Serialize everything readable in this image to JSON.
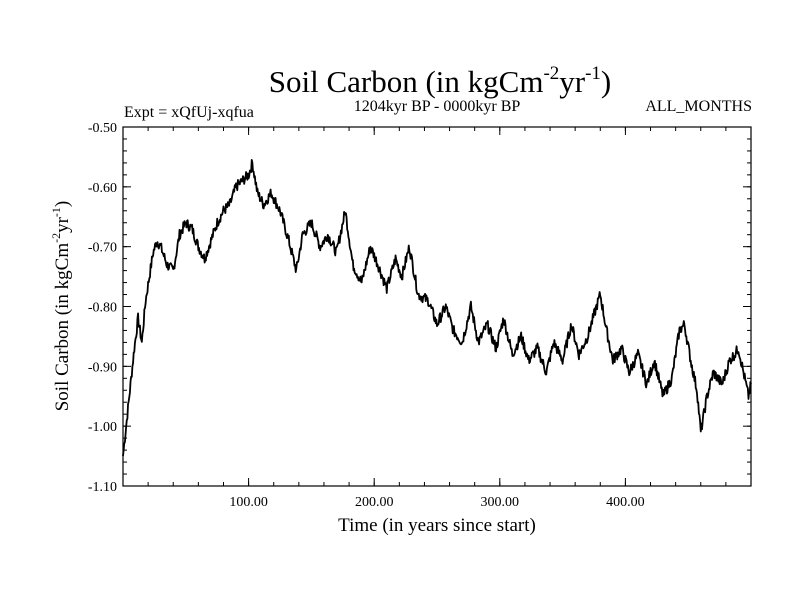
{
  "header": {
    "title_main": "Soil Carbon (in kgCm",
    "title_sup1": "-2",
    "title_mid": "yr",
    "title_sup2": "-1",
    "title_close": ")",
    "expt": "Expt = xQfUj-xqfua",
    "period": "1204kyr BP - 0000kyr BP",
    "months": "ALL_MONTHS"
  },
  "chart_data": {
    "type": "line",
    "title": "Soil Carbon (in kgCm-2yr-1)",
    "xlabel": "Time (in years since start)",
    "ylabel": "Soil Carbon (in kgCm-2yr-1)",
    "ylabel_parts": {
      "main": "Soil Carbon (in kgCm",
      "sup1": "-2",
      "mid": "yr",
      "sup2": "-1",
      "close": ")"
    },
    "xlim": [
      0,
      500
    ],
    "ylim": [
      -1.1,
      -0.5
    ],
    "xticks": [
      100,
      200,
      300,
      400
    ],
    "xtick_labels": [
      "100.00",
      "200.00",
      "300.00",
      "400.00"
    ],
    "yticks": [
      -1.1,
      -1.0,
      -0.9,
      -0.8,
      -0.7,
      -0.6,
      -0.5
    ],
    "ytick_labels": [
      "-1.10",
      "-1.00",
      "-0.90",
      "-0.80",
      "-0.70",
      "-0.60",
      "-0.50"
    ],
    "series": [
      {
        "name": "Soil Carbon",
        "color": "#000000",
        "x": [
          0,
          3,
          6,
          9,
          12,
          15,
          18,
          21,
          24,
          27,
          30,
          35,
          40,
          45,
          50,
          55,
          60,
          65,
          70,
          75,
          80,
          85,
          90,
          95,
          100,
          103,
          107,
          112,
          118,
          125,
          132,
          138,
          143,
          150,
          157,
          163,
          170,
          177,
          183,
          190,
          197,
          203,
          210,
          217,
          222,
          228,
          235,
          243,
          250,
          257,
          263,
          270,
          277,
          283,
          290,
          297,
          303,
          310,
          317,
          323,
          330,
          337,
          343,
          350,
          357,
          363,
          370,
          377,
          380,
          385,
          390,
          397,
          403,
          410,
          417,
          423,
          430,
          437,
          443,
          447,
          452,
          457,
          460,
          465,
          470,
          477,
          483,
          487,
          490,
          494,
          498,
          500
        ],
        "y": [
          -1.05,
          -0.99,
          -0.93,
          -0.87,
          -0.82,
          -0.86,
          -0.79,
          -0.75,
          -0.71,
          -0.69,
          -0.7,
          -0.73,
          -0.74,
          -0.68,
          -0.66,
          -0.67,
          -0.7,
          -0.72,
          -0.69,
          -0.66,
          -0.64,
          -0.63,
          -0.6,
          -0.59,
          -0.58,
          -0.56,
          -0.61,
          -0.63,
          -0.61,
          -0.64,
          -0.69,
          -0.74,
          -0.68,
          -0.66,
          -0.7,
          -0.68,
          -0.71,
          -0.64,
          -0.73,
          -0.76,
          -0.7,
          -0.73,
          -0.77,
          -0.72,
          -0.75,
          -0.7,
          -0.78,
          -0.79,
          -0.83,
          -0.8,
          -0.84,
          -0.86,
          -0.8,
          -0.86,
          -0.83,
          -0.87,
          -0.82,
          -0.88,
          -0.85,
          -0.89,
          -0.87,
          -0.91,
          -0.86,
          -0.89,
          -0.83,
          -0.88,
          -0.85,
          -0.8,
          -0.78,
          -0.84,
          -0.89,
          -0.87,
          -0.91,
          -0.88,
          -0.93,
          -0.89,
          -0.95,
          -0.92,
          -0.84,
          -0.83,
          -0.89,
          -0.94,
          -1.01,
          -0.95,
          -0.91,
          -0.93,
          -0.89,
          -0.88,
          -0.87,
          -0.91,
          -0.95,
          -0.93
        ]
      }
    ]
  }
}
